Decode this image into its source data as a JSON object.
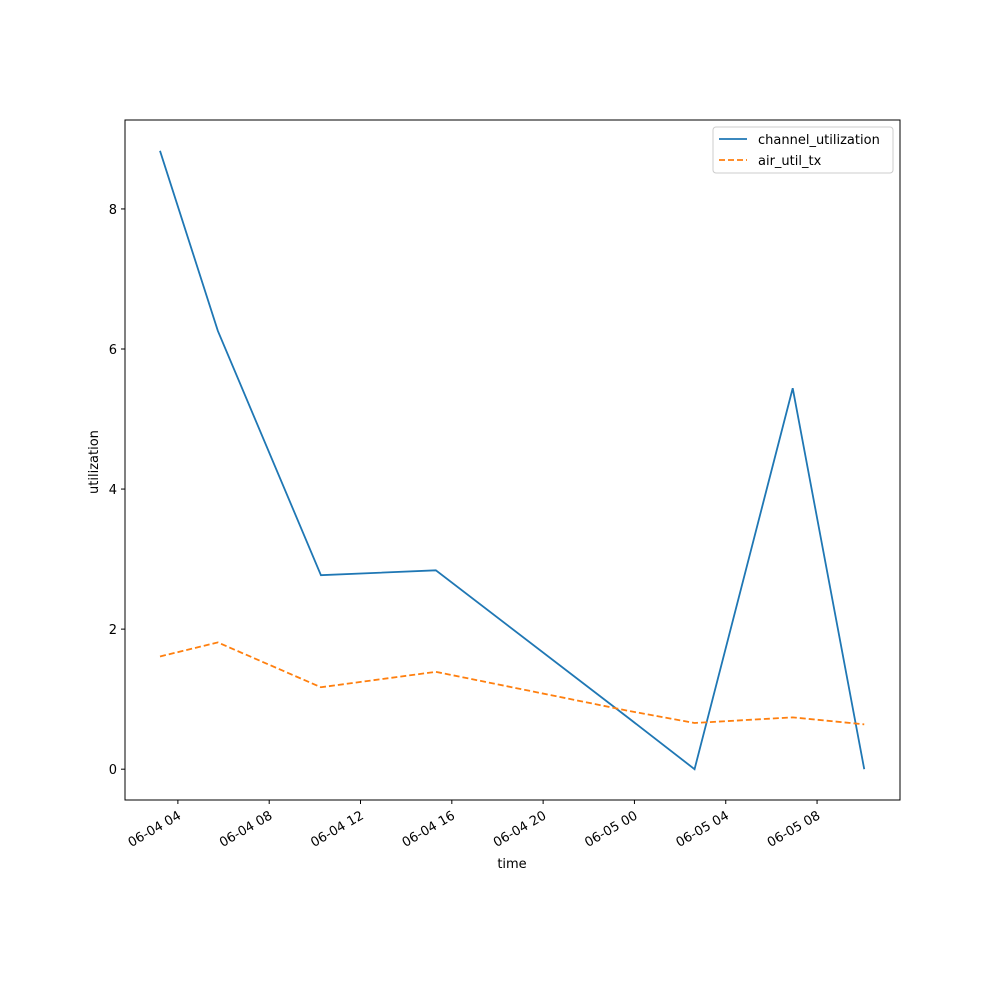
{
  "chart_data": {
    "type": "line",
    "xlabel": "time",
    "ylabel": "utilization",
    "x": [
      "06-04 03:13",
      "06-04 05:45",
      "06-04 10:16",
      "06-04 15:18",
      "06-04 23:47",
      "06-05 02:38",
      "06-05 06:56",
      "06-05 10:04"
    ],
    "series": [
      {
        "name": "channel_utilization",
        "color": "#1f77b4",
        "linestyle": "solid",
        "values": [
          8.83,
          6.26,
          2.77,
          2.84,
          0.72,
          0.0,
          5.44,
          0.0
        ]
      },
      {
        "name": "air_util_tx",
        "color": "#ff7f0e",
        "linestyle": "dashed",
        "values": [
          1.61,
          1.81,
          1.17,
          1.39,
          0.83,
          0.66,
          0.74,
          0.64
        ]
      }
    ],
    "xlim": [
      "06-04 01:41",
      "06-05 11:38"
    ],
    "xticks": [
      {
        "value": "06-04 04:00",
        "label": "06-04 04"
      },
      {
        "value": "06-04 08:00",
        "label": "06-04 08"
      },
      {
        "value": "06-04 12:00",
        "label": "06-04 12"
      },
      {
        "value": "06-04 16:00",
        "label": "06-04 16"
      },
      {
        "value": "06-04 20:00",
        "label": "06-04 20"
      },
      {
        "value": "06-05 00:00",
        "label": "06-05 00"
      },
      {
        "value": "06-05 04:00",
        "label": "06-05 04"
      },
      {
        "value": "06-05 08:00",
        "label": "06-05 08"
      }
    ],
    "ylim": [
      -0.44,
      9.27
    ],
    "yticks": [
      0,
      2,
      4,
      6,
      8
    ],
    "grid": false,
    "legend": "upper right"
  }
}
